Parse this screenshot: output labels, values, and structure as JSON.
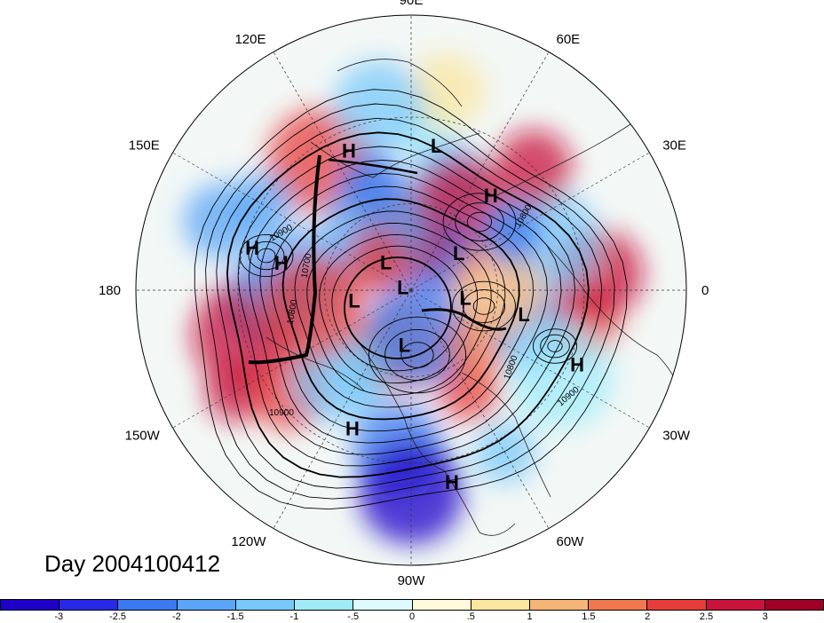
{
  "title": "Day 2004100412",
  "longitude_labels": [
    {
      "id": "lon-90e",
      "text": "90E",
      "angle": 90
    },
    {
      "id": "lon-60e",
      "text": "60E",
      "angle": 60
    },
    {
      "id": "lon-30e",
      "text": "30E",
      "angle": 30
    },
    {
      "id": "lon-0",
      "text": "0",
      "angle": 0
    },
    {
      "id": "lon-30w",
      "text": "30W",
      "angle": -30
    },
    {
      "id": "lon-60w",
      "text": "60W",
      "angle": -60
    },
    {
      "id": "lon-90w",
      "text": "90W",
      "angle": -90
    },
    {
      "id": "lon-120w",
      "text": "120W",
      "angle": -120
    },
    {
      "id": "lon-150w",
      "text": "150W",
      "angle": -150
    },
    {
      "id": "lon-180",
      "text": "180",
      "angle": 180
    },
    {
      "id": "lon-150e",
      "text": "150E",
      "angle": 150
    },
    {
      "id": "lon-120e",
      "text": "120E",
      "angle": 120
    }
  ],
  "pressure_centers": [
    {
      "type": "L",
      "lon": 80,
      "colat": 51
    },
    {
      "type": "H",
      "lon": 50,
      "colat": 43
    },
    {
      "type": "H",
      "lon": 114,
      "colat": 53
    },
    {
      "type": "H",
      "lon": 165,
      "colat": 57
    },
    {
      "type": "H",
      "lon": 168,
      "colat": 46
    },
    {
      "type": "L",
      "lon": 38,
      "colat": 21
    },
    {
      "type": "L",
      "lon": 132,
      "colat": 13
    },
    {
      "type": "L",
      "lon": 160,
      "colat": 3
    },
    {
      "type": "L",
      "lon": -170,
      "colat": 20
    },
    {
      "type": "L",
      "lon": -8,
      "colat": 19
    },
    {
      "type": "L",
      "lon": -97,
      "colat": 19
    },
    {
      "type": "L",
      "lon": -12,
      "colat": 40
    },
    {
      "type": "H",
      "lon": -24,
      "colat": 63
    },
    {
      "type": "H",
      "lon": -113,
      "colat": 52
    },
    {
      "type": "H",
      "lon": -78,
      "colat": 68
    }
  ],
  "contour_labels": [
    "10900",
    "10700",
    "10800",
    "10800",
    "10900",
    "10800",
    "10900"
  ],
  "colorbar": {
    "colors": [
      "#1e00c8",
      "#2828e6",
      "#3c78ef",
      "#5aa5f5",
      "#78c8fa",
      "#a0ebfa",
      "#dcfaff",
      "#fffadc",
      "#fae6a0",
      "#f5b478",
      "#f07850",
      "#e63c3c",
      "#c8143c",
      "#a00028"
    ],
    "tick_labels": [
      "-3",
      "-2.5",
      "-2",
      "-1.5",
      "-1",
      "-.5",
      "0",
      ".5",
      "1",
      "1.5",
      "2",
      "2.5",
      "3"
    ]
  }
}
